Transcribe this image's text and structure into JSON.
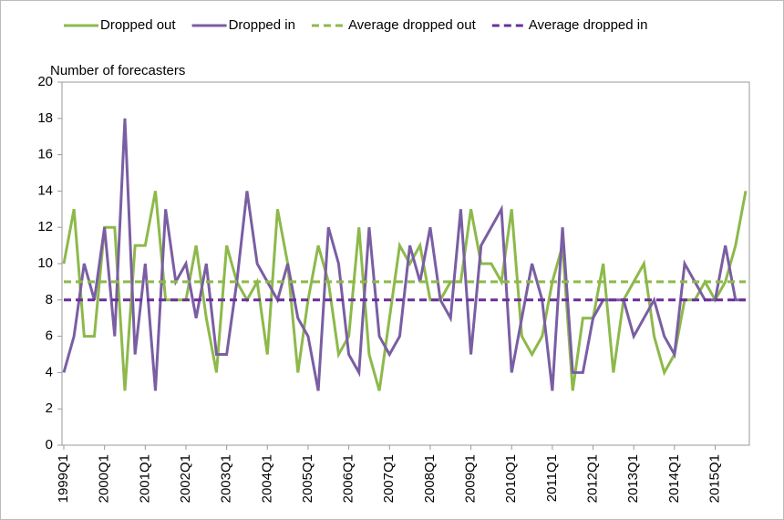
{
  "chart_data": {
    "type": "line",
    "categories": [
      "1999Q1",
      null,
      null,
      null,
      "2000Q1",
      null,
      null,
      null,
      "2001Q1",
      null,
      null,
      null,
      "2002Q1",
      null,
      null,
      null,
      "2003Q1",
      null,
      null,
      null,
      "2004Q1",
      null,
      null,
      null,
      "2005Q1",
      null,
      null,
      null,
      "2006Q1",
      null,
      null,
      null,
      "2007Q1",
      null,
      null,
      null,
      "2008Q1",
      null,
      null,
      null,
      "2009Q1",
      null,
      null,
      null,
      "2010Q1",
      null,
      null,
      null,
      "2011Q1",
      null,
      null,
      null,
      "2012Q1",
      null,
      null,
      null,
      "2013Q1",
      null,
      null,
      null,
      "2014Q1",
      null,
      null,
      null,
      "2015Q1",
      null,
      null,
      null
    ],
    "y_label": "Number of forecasters",
    "ylim": [
      0,
      20
    ],
    "yticks": [
      0,
      2,
      4,
      6,
      8,
      10,
      12,
      14,
      16,
      18,
      20
    ],
    "series": [
      {
        "name": "Dropped out",
        "color": "#8db94b",
        "dashed": false,
        "values": [
          10,
          13,
          6,
          6,
          12,
          12,
          3,
          11,
          11,
          14,
          8,
          8,
          8,
          11,
          7,
          4,
          11,
          9,
          8,
          9,
          5,
          13,
          10,
          4,
          8,
          11,
          9,
          5,
          6,
          12,
          5,
          3,
          7,
          11,
          10,
          11,
          8,
          8,
          9,
          9,
          13,
          10,
          10,
          9,
          13,
          6,
          5,
          6,
          9,
          11,
          3,
          7,
          7,
          10,
          4,
          8,
          9,
          10,
          6,
          4,
          5,
          8,
          8,
          9,
          8,
          9,
          11,
          14
        ]
      },
      {
        "name": "Dropped in",
        "color": "#7a5ea3",
        "dashed": false,
        "values": [
          4,
          6,
          10,
          8,
          12,
          6,
          18,
          5,
          10,
          3,
          13,
          9,
          10,
          7,
          10,
          5,
          5,
          9,
          14,
          10,
          9,
          8,
          10,
          7,
          6,
          3,
          12,
          10,
          5,
          4,
          12,
          6,
          5,
          6,
          11,
          9,
          12,
          8,
          7,
          13,
          5,
          11,
          12,
          13,
          4,
          7,
          10,
          8,
          3,
          12,
          4,
          4,
          7,
          8,
          8,
          8,
          6,
          7,
          8,
          6,
          5,
          10,
          9,
          8,
          8,
          11,
          8,
          8
        ]
      },
      {
        "name": "Average dropped out",
        "color": "#8db94b",
        "dashed": true,
        "values": [
          9,
          9,
          9,
          9,
          9,
          9,
          9,
          9,
          9,
          9,
          9,
          9,
          9,
          9,
          9,
          9,
          9,
          9,
          9,
          9,
          9,
          9,
          9,
          9,
          9,
          9,
          9,
          9,
          9,
          9,
          9,
          9,
          9,
          9,
          9,
          9,
          9,
          9,
          9,
          9,
          9,
          9,
          9,
          9,
          9,
          9,
          9,
          9,
          9,
          9,
          9,
          9,
          9,
          9,
          9,
          9,
          9,
          9,
          9,
          9,
          9,
          9,
          9,
          9,
          9,
          9,
          9,
          9
        ]
      },
      {
        "name": "Average dropped in",
        "color": "#6a2e9a",
        "dashed": true,
        "values": [
          8,
          8,
          8,
          8,
          8,
          8,
          8,
          8,
          8,
          8,
          8,
          8,
          8,
          8,
          8,
          8,
          8,
          8,
          8,
          8,
          8,
          8,
          8,
          8,
          8,
          8,
          8,
          8,
          8,
          8,
          8,
          8,
          8,
          8,
          8,
          8,
          8,
          8,
          8,
          8,
          8,
          8,
          8,
          8,
          8,
          8,
          8,
          8,
          8,
          8,
          8,
          8,
          8,
          8,
          8,
          8,
          8,
          8,
          8,
          8,
          8,
          8,
          8,
          8,
          8,
          8,
          8,
          8
        ]
      }
    ]
  }
}
